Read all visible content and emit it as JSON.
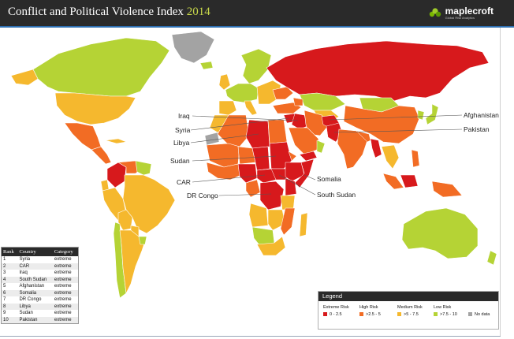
{
  "header": {
    "title": "Conflict and Political Violence Index",
    "year": "2014",
    "brand": "maplecroft",
    "brand_tagline": "Global Risk Analytics"
  },
  "map_labels": {
    "iraq": "Iraq",
    "syria": "Syria",
    "libya": "Libya",
    "sudan": "Sudan",
    "car": "CAR",
    "dr_congo": "DR Congo",
    "somalia": "Somalia",
    "south_sudan": "South Sudan",
    "afghanistan": "Afghanistan",
    "pakistan": "Pakistan"
  },
  "ranking_table": {
    "headers": [
      "Rank",
      "Country",
      "Category"
    ],
    "rows": [
      [
        "1",
        "Syria",
        "extreme"
      ],
      [
        "2",
        "CAR",
        "extreme"
      ],
      [
        "3",
        "Iraq",
        "extreme"
      ],
      [
        "4",
        "South Sudan",
        "extreme"
      ],
      [
        "5",
        "Afghanistan",
        "extreme"
      ],
      [
        "6",
        "Somalia",
        "extreme"
      ],
      [
        "7",
        "DR Congo",
        "extreme"
      ],
      [
        "8",
        "Libya",
        "extreme"
      ],
      [
        "9",
        "Sudan",
        "extreme"
      ],
      [
        "10",
        "Pakistan",
        "extreme"
      ]
    ]
  },
  "legend": {
    "title": "Legend",
    "categories": [
      {
        "label": "Extreme Risk",
        "range": "0 - 2.5",
        "color": "#d7191c"
      },
      {
        "label": "High Risk",
        "range": ">2.5 - 5",
        "color": "#f26c24"
      },
      {
        "label": "Medium Risk",
        "range": ">5 - 7.5",
        "color": "#f5b82e"
      },
      {
        "label": "Low Risk",
        "range": ">7.5 - 10",
        "color": "#b5d335"
      }
    ],
    "no_data": {
      "label": "No data",
      "color": "#a3a3a3"
    }
  },
  "colors": {
    "ocean": "#ffffff",
    "header": "#2a2a2a",
    "accent_line": "#2d6fb2",
    "year": "#c8d84a",
    "extreme": "#d7191c",
    "high": "#f26c24",
    "medium": "#f5b82e",
    "low": "#b5d335",
    "no_data": "#a3a3a3"
  }
}
